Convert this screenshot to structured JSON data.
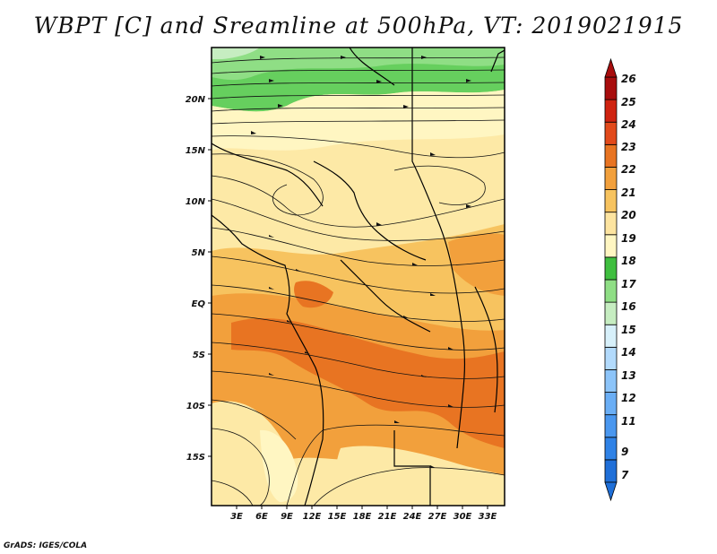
{
  "title": "WBPT [C] and Sreamline at 500hPa, VT: 2019021915",
  "footer": "GrADS: IGES/COLA",
  "map": {
    "variable": "Wet-bulb potential temperature (WBPT) with streamlines",
    "level": "500hPa",
    "valid_time": "2019021915",
    "lat_labels": [
      "20N",
      "15N",
      "10N",
      "5N",
      "EQ",
      "5S",
      "10S",
      "15S"
    ],
    "lon_labels": [
      "3E",
      "6E",
      "9E",
      "12E",
      "15E",
      "18E",
      "21E",
      "24E",
      "27E",
      "30E",
      "33E"
    ]
  },
  "colorbar": {
    "levels": [
      "7",
      "9",
      "11",
      "12",
      "13",
      "14",
      "15",
      "16",
      "17",
      "18",
      "19",
      "20",
      "21",
      "22",
      "23",
      "24",
      "25",
      "26"
    ],
    "colors": [
      "#1f6fd8",
      "#2f82e6",
      "#4a97ef",
      "#6aaef5",
      "#8cc4f9",
      "#b2dafc",
      "#d7f0fa",
      "#c6edc1",
      "#8fde85",
      "#3fbf3f",
      "#fff6c2",
      "#fde4a0",
      "#f7c35f",
      "#f2a03c",
      "#e87422",
      "#e24a1b",
      "#cf2310",
      "#a80d0d"
    ]
  },
  "legend_colors": {
    "green_band": "#66cf5e",
    "light_yellow": "#fde9a6",
    "orange": "#f2a03c",
    "red_orange": "#e87422"
  }
}
